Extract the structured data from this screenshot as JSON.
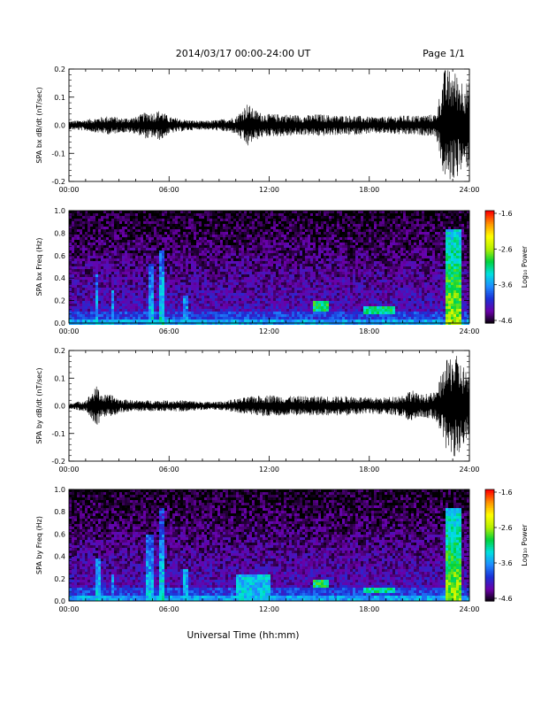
{
  "header": {
    "title": "2014/03/17  00:00-24:00 UT",
    "page": "Page 1/1"
  },
  "x_axis": {
    "title": "Universal Time (hh:mm)",
    "ticks": [
      "00:00",
      "06:00",
      "12:00",
      "18:00",
      "24:00"
    ]
  },
  "colors": {
    "trace": "#000000",
    "colormap": [
      "#000000",
      "#6a00a8",
      "#1b2fd6",
      "#1e8cff",
      "#00e0e0",
      "#00d23c",
      "#b4f000",
      "#ffff00",
      "#ff9600",
      "#ff0000"
    ]
  },
  "colorbar": {
    "label": "Log₁₀ Power",
    "ticks": [
      "-1.6",
      "-2.6",
      "-3.6",
      "-4.6"
    ]
  },
  "chart_data": [
    {
      "type": "line",
      "ylabel": "SPA bx dB/dt (nT/sec)",
      "ylim": [
        -0.2,
        0.2
      ],
      "yticks": [
        "0.2",
        "0.1",
        "0.0",
        "-0.1",
        "-0.2"
      ],
      "xlim": [
        0,
        24
      ],
      "envelope": {
        "x": [
          0,
          1,
          2,
          2.6,
          3,
          4,
          4.7,
          5,
          5.5,
          6,
          7,
          8,
          9,
          10,
          10.7,
          11,
          11.5,
          12,
          13,
          14,
          15,
          16,
          17,
          18,
          19,
          20,
          21,
          22,
          22.5,
          23,
          23.5,
          24
        ],
        "y": [
          0.015,
          0.02,
          0.03,
          0.035,
          0.025,
          0.03,
          0.05,
          0.045,
          0.055,
          0.03,
          0.02,
          0.015,
          0.02,
          0.03,
          0.08,
          0.06,
          0.045,
          0.04,
          0.04,
          0.035,
          0.04,
          0.035,
          0.035,
          0.03,
          0.03,
          0.035,
          0.035,
          0.04,
          0.2,
          0.2,
          0.17,
          0.15
        ]
      }
    },
    {
      "type": "heatmap",
      "ylabel": "SPA bx Freq (Hz)",
      "ylim": [
        0.0,
        1.0
      ],
      "yticks": [
        "1.0",
        "0.8",
        "0.6",
        "0.4",
        "0.2",
        "0.0"
      ],
      "xlim": [
        0,
        24
      ],
      "zlim": [
        -4.6,
        -1.6
      ],
      "features": [
        {
          "x": [
            1.5,
            1.7
          ],
          "y": [
            0.0,
            0.45
          ],
          "z": -3.4
        },
        {
          "x": [
            2.4,
            2.6
          ],
          "y": [
            0.0,
            0.3
          ],
          "z": -3.6
        },
        {
          "x": [
            4.7,
            5.0
          ],
          "y": [
            0.0,
            0.55
          ],
          "z": -3.3
        },
        {
          "x": [
            5.4,
            5.7
          ],
          "y": [
            0.0,
            0.65
          ],
          "z": -3.2
        },
        {
          "x": [
            6.8,
            7.0
          ],
          "y": [
            0.0,
            0.25
          ],
          "z": -3.6
        },
        {
          "x": [
            14.5,
            15.5
          ],
          "y": [
            0.12,
            0.22
          ],
          "z": -3.0
        },
        {
          "x": [
            17.5,
            19.5
          ],
          "y": [
            0.08,
            0.16
          ],
          "z": -3.1
        },
        {
          "x": [
            22.5,
            23.5
          ],
          "y": [
            0.0,
            0.85
          ],
          "z": -2.6
        }
      ]
    },
    {
      "type": "line",
      "ylabel": "SPA by dB/dt (nT/sec)",
      "ylim": [
        -0.2,
        0.2
      ],
      "yticks": [
        "0.2",
        "0.1",
        "0.0",
        "-0.1",
        "-0.2"
      ],
      "xlim": [
        0,
        24
      ],
      "envelope": {
        "x": [
          0,
          1,
          1.7,
          2,
          2.6,
          3,
          4,
          5,
          6,
          7,
          8,
          9,
          10,
          11,
          12,
          13,
          14,
          15,
          16,
          17,
          18,
          19,
          20,
          20.5,
          21,
          22,
          22.5,
          23,
          23.5,
          24
        ],
        "y": [
          0.01,
          0.02,
          0.075,
          0.04,
          0.04,
          0.025,
          0.02,
          0.02,
          0.02,
          0.02,
          0.015,
          0.015,
          0.025,
          0.035,
          0.04,
          0.035,
          0.035,
          0.035,
          0.035,
          0.035,
          0.03,
          0.03,
          0.04,
          0.06,
          0.04,
          0.05,
          0.15,
          0.2,
          0.16,
          0.12
        ]
      }
    },
    {
      "type": "heatmap",
      "ylabel": "SPA by Freq (Hz)",
      "ylim": [
        0.0,
        1.0
      ],
      "yticks": [
        "1.0",
        "0.8",
        "0.6",
        "0.4",
        "0.2",
        "0.0"
      ],
      "xlim": [
        0,
        24
      ],
      "zlim": [
        -4.6,
        -1.6
      ],
      "features": [
        {
          "x": [
            1.5,
            1.8
          ],
          "y": [
            0.0,
            0.4
          ],
          "z": -3.3
        },
        {
          "x": [
            2.4,
            2.6
          ],
          "y": [
            0.0,
            0.25
          ],
          "z": -3.6
        },
        {
          "x": [
            4.6,
            5.0
          ],
          "y": [
            0.0,
            0.6
          ],
          "z": -3.3
        },
        {
          "x": [
            5.3,
            5.7
          ],
          "y": [
            0.0,
            0.85
          ],
          "z": -3.2
        },
        {
          "x": [
            6.8,
            7.0
          ],
          "y": [
            0.0,
            0.3
          ],
          "z": -3.5
        },
        {
          "x": [
            10.0,
            12.0
          ],
          "y": [
            0.0,
            0.25
          ],
          "z": -3.4
        },
        {
          "x": [
            14.5,
            15.5
          ],
          "y": [
            0.12,
            0.2
          ],
          "z": -3.0
        },
        {
          "x": [
            17.5,
            19.5
          ],
          "y": [
            0.08,
            0.14
          ],
          "z": -3.1
        },
        {
          "x": [
            22.5,
            23.5
          ],
          "y": [
            0.0,
            0.85
          ],
          "z": -2.6
        }
      ]
    }
  ]
}
